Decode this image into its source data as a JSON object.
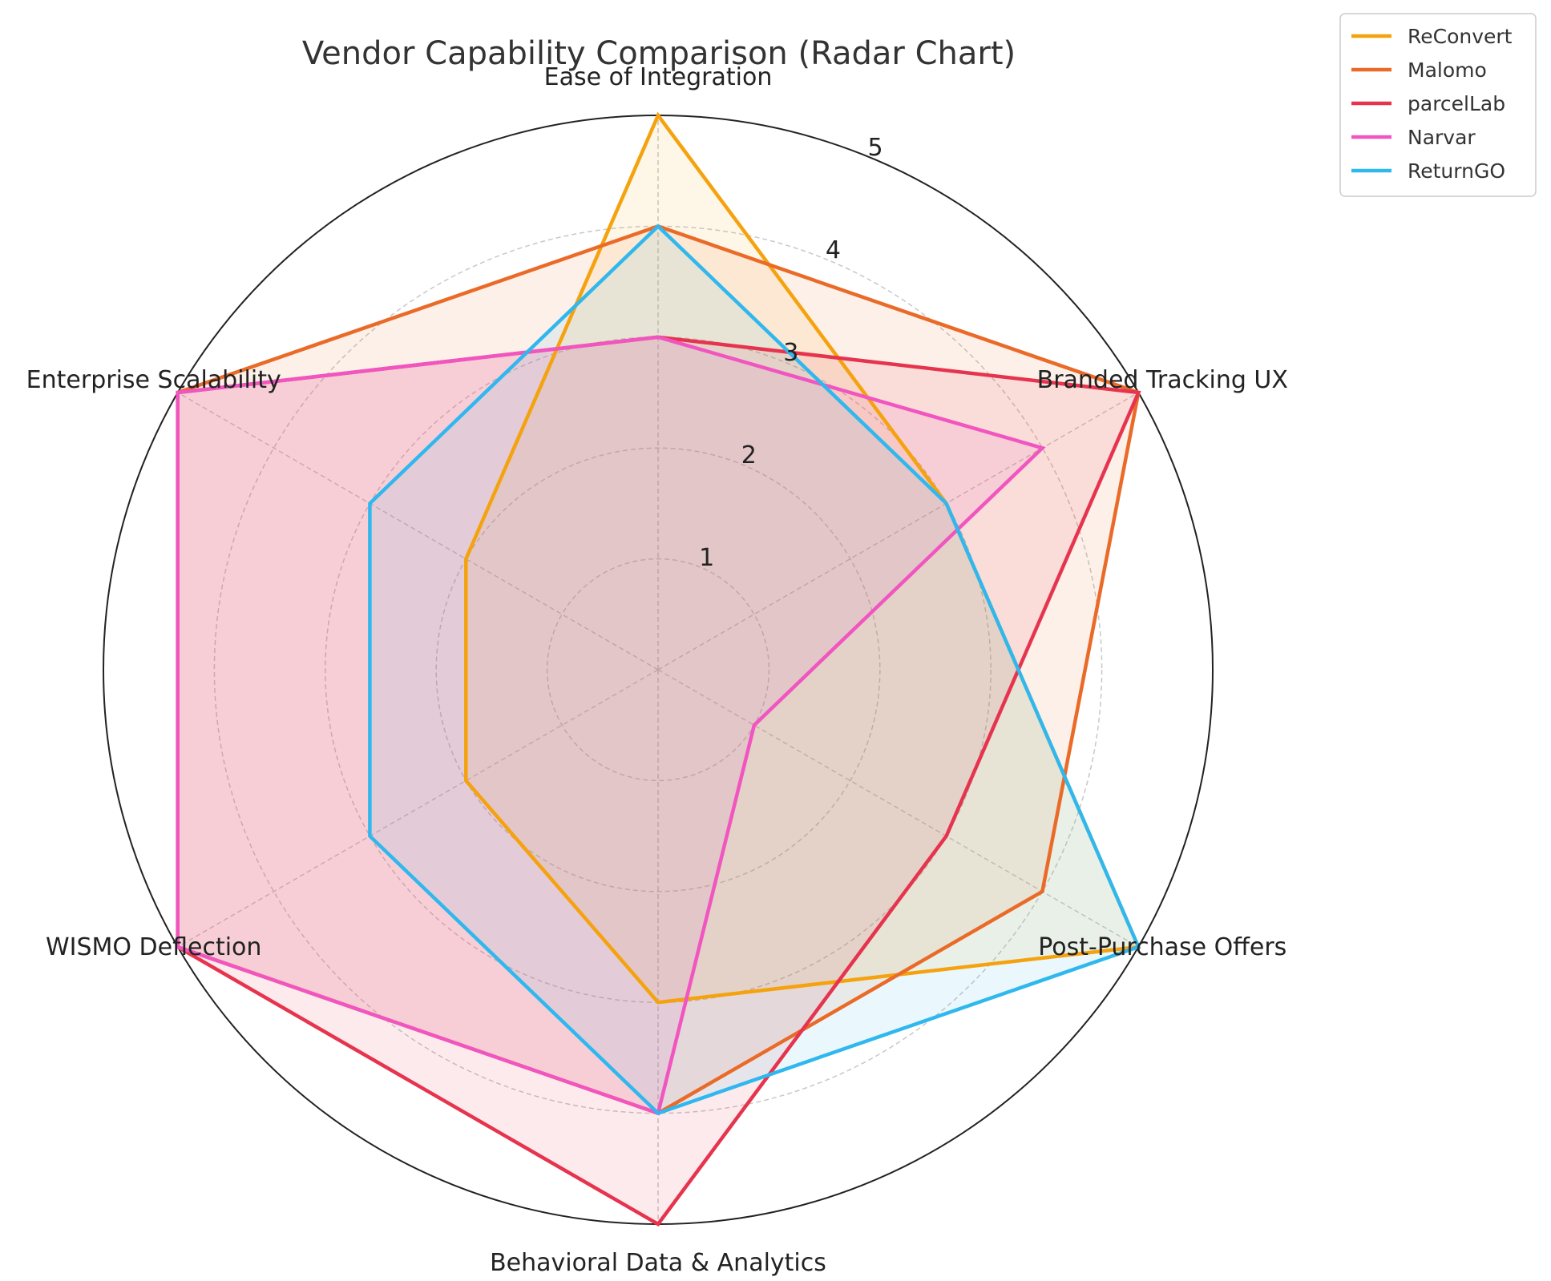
{
  "chart_data": {
    "type": "radar",
    "title": "Vendor Capability Comparison (Radar Chart)",
    "categories": [
      "Ease of Integration",
      "Branded Tracking UX",
      "Post-Purchase Offers",
      "Behavioral Data & Analytics",
      "WISMO Deflection",
      "Enterprise Scalability"
    ],
    "radial_ticks": [
      1,
      2,
      3,
      4,
      5
    ],
    "rlim": [
      0,
      5
    ],
    "grid": true,
    "legend_position": "upper right, outside plot",
    "series": [
      {
        "name": "ReConvert",
        "color": "#f5a20f",
        "values": [
          5,
          3,
          5,
          3,
          2,
          2
        ]
      },
      {
        "name": "Malomo",
        "color": "#ea6a28",
        "values": [
          4,
          5,
          4,
          4,
          5,
          5
        ]
      },
      {
        "name": "parcelLab",
        "color": "#e6344e",
        "values": [
          3,
          5,
          3,
          5,
          5,
          5
        ]
      },
      {
        "name": "Narvar",
        "color": "#f055c0",
        "values": [
          3,
          4,
          1,
          4,
          5,
          5
        ]
      },
      {
        "name": "ReturnGO",
        "color": "#30b8ee",
        "values": [
          4,
          3,
          5,
          4,
          3,
          3
        ]
      }
    ]
  }
}
